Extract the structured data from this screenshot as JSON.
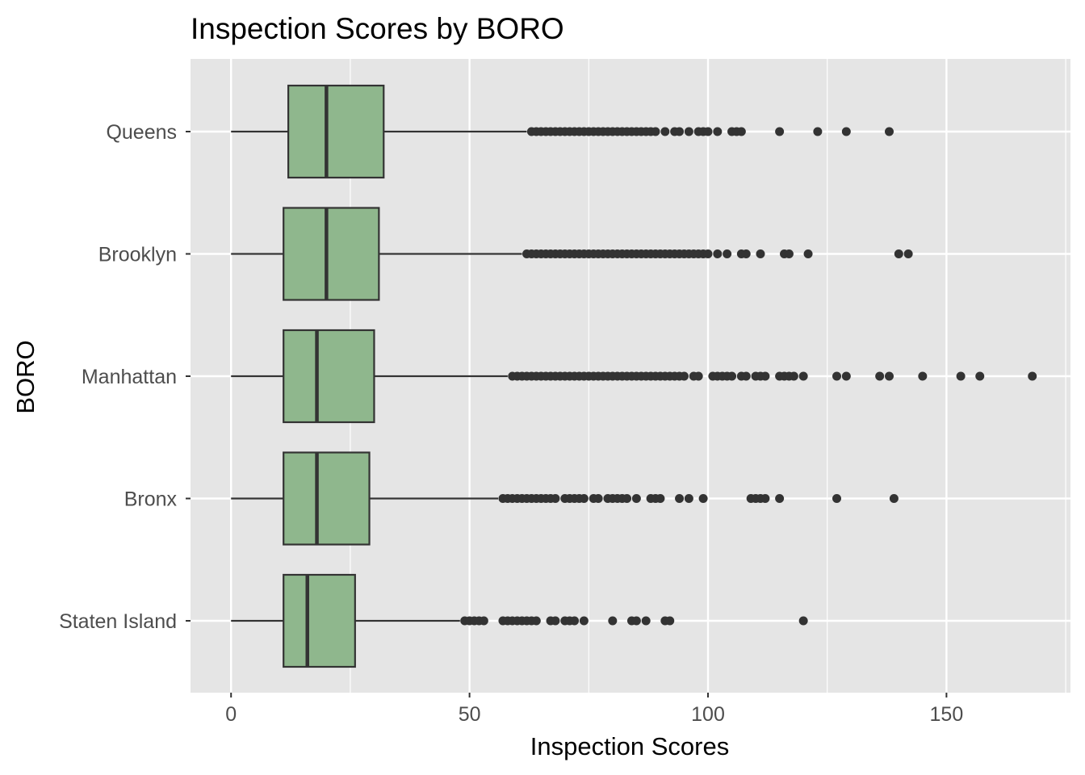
{
  "chart_data": {
    "type": "boxplot",
    "orientation": "horizontal",
    "title": "Inspection Scores by BORO",
    "xlabel": "Inspection Scores",
    "ylabel": "BORO",
    "xlim": [
      -8.5,
      176
    ],
    "x_ticks": [
      0,
      50,
      100,
      150
    ],
    "x_tick_labels": [
      "0",
      "50",
      "100",
      "150"
    ],
    "grid": true,
    "colors": {
      "panel_background": "#e5e5e5",
      "grid_major": "#ffffff",
      "box_fill": "#8fb78d",
      "box_outline": "#333333",
      "outlier": "#333333"
    },
    "categories": [
      "Queens",
      "Brooklyn",
      "Manhattan",
      "Bronx",
      "Staten Island"
    ],
    "series": [
      {
        "name": "Queens",
        "whisker_low": 0,
        "q1": 12,
        "median": 20,
        "q3": 32,
        "whisker_high": 62,
        "outliers": [
          63,
          64,
          65,
          66,
          67,
          68,
          69,
          70,
          71,
          72,
          73,
          74,
          75,
          76,
          77,
          78,
          79,
          80,
          81,
          82,
          83,
          84,
          85,
          86,
          87,
          88,
          89,
          91,
          93,
          94,
          96,
          98,
          99,
          100,
          102,
          105,
          106,
          107,
          115,
          123,
          129,
          138
        ]
      },
      {
        "name": "Brooklyn",
        "whisker_low": 0,
        "q1": 11,
        "median": 20,
        "q3": 31,
        "whisker_high": 61,
        "outliers": [
          62,
          63,
          64,
          65,
          66,
          67,
          68,
          69,
          70,
          71,
          72,
          73,
          74,
          75,
          76,
          77,
          78,
          79,
          80,
          81,
          82,
          83,
          84,
          85,
          86,
          87,
          88,
          89,
          90,
          91,
          92,
          93,
          94,
          95,
          96,
          97,
          98,
          99,
          100,
          102,
          104,
          107,
          108,
          111,
          116,
          117,
          121,
          140,
          142
        ]
      },
      {
        "name": "Manhattan",
        "whisker_low": 0,
        "q1": 11,
        "median": 18,
        "q3": 30,
        "whisker_high": 58,
        "outliers": [
          59,
          60,
          61,
          62,
          63,
          64,
          65,
          66,
          67,
          68,
          69,
          70,
          71,
          72,
          73,
          74,
          75,
          76,
          77,
          78,
          79,
          80,
          81,
          82,
          83,
          84,
          85,
          86,
          87,
          88,
          89,
          90,
          91,
          92,
          93,
          94,
          95,
          97,
          98,
          101,
          102,
          103,
          104,
          105,
          107,
          108,
          110,
          111,
          112,
          115,
          116,
          117,
          118,
          120,
          127,
          129,
          136,
          138,
          145,
          153,
          157,
          168
        ]
      },
      {
        "name": "Bronx",
        "whisker_low": 0,
        "q1": 11,
        "median": 18,
        "q3": 29,
        "whisker_high": 56,
        "outliers": [
          57,
          58,
          59,
          60,
          61,
          62,
          63,
          64,
          65,
          66,
          67,
          68,
          70,
          71,
          72,
          73,
          74,
          76,
          77,
          79,
          80,
          81,
          82,
          83,
          85,
          88,
          89,
          90,
          94,
          96,
          99,
          109,
          110,
          111,
          112,
          115,
          127,
          139
        ]
      },
      {
        "name": "Staten Island",
        "whisker_low": 0,
        "q1": 11,
        "median": 16,
        "q3": 26,
        "whisker_high": 48,
        "outliers": [
          49,
          50,
          51,
          52,
          53,
          57,
          58,
          59,
          60,
          61,
          62,
          63,
          64,
          67,
          68,
          70,
          71,
          72,
          74,
          80,
          84,
          85,
          87,
          91,
          92,
          120
        ]
      }
    ]
  }
}
